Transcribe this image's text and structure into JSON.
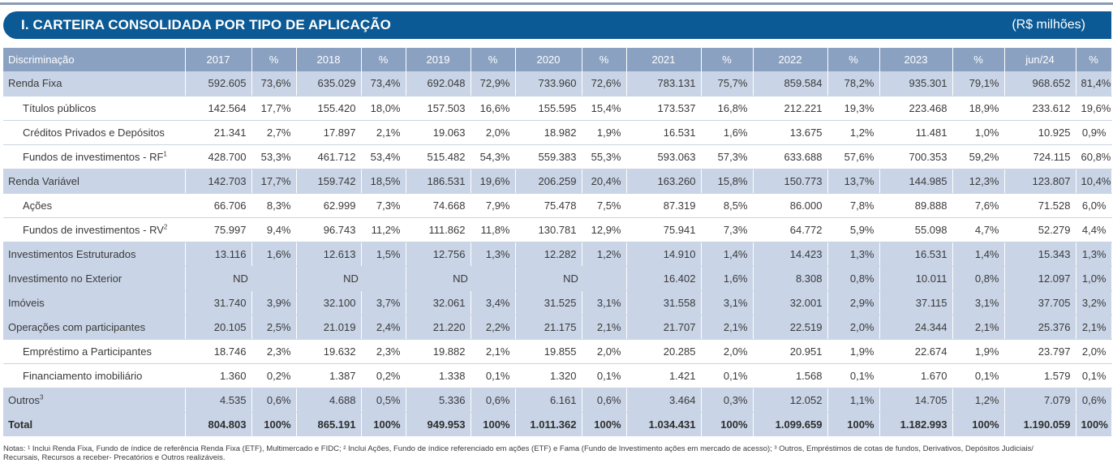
{
  "header": {
    "title": "I. CARTEIRA CONSOLIDADA POR TIPO DE APLICAÇÃO",
    "unit": "(R$ milhões)"
  },
  "table": {
    "columns": [
      "Discriminação",
      "2017",
      "%",
      "2018",
      "%",
      "2019",
      "%",
      "2020",
      "%",
      "2021",
      "%",
      "2022",
      "%",
      "2023",
      "%",
      "jun/24",
      "%"
    ],
    "rows": [
      {
        "label": "Renda Fixa",
        "sup": "",
        "level": "top",
        "cells": [
          "592.605",
          "73,6%",
          "635.029",
          "73,4%",
          "692.048",
          "72,9%",
          "733.960",
          "72,6%",
          "783.131",
          "75,7%",
          "859.584",
          "78,2%",
          "935.301",
          "79,1%",
          "968.652",
          "81,4%"
        ]
      },
      {
        "label": "Títulos públicos",
        "sup": "",
        "level": "sub",
        "cells": [
          "142.564",
          "17,7%",
          "155.420",
          "18,0%",
          "157.503",
          "16,6%",
          "155.595",
          "15,4%",
          "173.537",
          "16,8%",
          "212.221",
          "19,3%",
          "223.468",
          "18,9%",
          "233.612",
          "19,6%"
        ]
      },
      {
        "label": "Créditos Privados e Depósitos",
        "sup": "",
        "level": "sub",
        "cells": [
          "21.341",
          "2,7%",
          "17.897",
          "2,1%",
          "19.063",
          "2,0%",
          "18.982",
          "1,9%",
          "16.531",
          "1,6%",
          "13.675",
          "1,2%",
          "11.481",
          "1,0%",
          "10.925",
          "0,9%"
        ]
      },
      {
        "label": "Fundos de investimentos - RF",
        "sup": "1",
        "level": "sub",
        "cells": [
          "428.700",
          "53,3%",
          "461.712",
          "53,4%",
          "515.482",
          "54,3%",
          "559.383",
          "55,3%",
          "593.063",
          "57,3%",
          "633.688",
          "57,6%",
          "700.353",
          "59,2%",
          "724.115",
          "60,8%"
        ]
      },
      {
        "label": "Renda Variável",
        "sup": "",
        "level": "top",
        "cells": [
          "142.703",
          "17,7%",
          "159.742",
          "18,5%",
          "186.531",
          "19,6%",
          "206.259",
          "20,4%",
          "163.260",
          "15,8%",
          "150.773",
          "13,7%",
          "144.985",
          "12,3%",
          "123.807",
          "10,4%"
        ]
      },
      {
        "label": "Ações",
        "sup": "",
        "level": "sub",
        "cells": [
          "66.706",
          "8,3%",
          "62.999",
          "7,3%",
          "74.668",
          "7,9%",
          "75.478",
          "7,5%",
          "87.319",
          "8,5%",
          "86.000",
          "7,8%",
          "89.888",
          "7,6%",
          "71.528",
          "6,0%"
        ]
      },
      {
        "label": "Fundos de investimentos - RV",
        "sup": "2",
        "level": "sub",
        "cells": [
          "75.997",
          "9,4%",
          "96.743",
          "11,2%",
          "111.862",
          "11,8%",
          "130.781",
          "12,9%",
          "75.941",
          "7,3%",
          "64.772",
          "5,9%",
          "55.098",
          "4,7%",
          "52.279",
          "4,4%"
        ]
      },
      {
        "label": "Investimentos Estruturados",
        "sup": "",
        "level": "top",
        "cells": [
          "13.116",
          "1,6%",
          "12.613",
          "1,5%",
          "12.756",
          "1,3%",
          "12.282",
          "1,2%",
          "14.910",
          "1,4%",
          "14.423",
          "1,3%",
          "16.531",
          "1,4%",
          "15.343",
          "1,3%"
        ]
      },
      {
        "label": "Investimento no Exterior",
        "sup": "",
        "level": "top",
        "nd": [
          "ND",
          "ND",
          "ND",
          "ND"
        ],
        "cells": [
          "16.402",
          "1,6%",
          "8.308",
          "0,8%",
          "10.011",
          "0,8%",
          "12.097",
          "1,0%"
        ]
      },
      {
        "label": "Imóveis",
        "sup": "",
        "level": "top",
        "cells": [
          "31.740",
          "3,9%",
          "32.100",
          "3,7%",
          "32.061",
          "3,4%",
          "31.525",
          "3,1%",
          "31.558",
          "3,1%",
          "32.001",
          "2,9%",
          "37.115",
          "3,1%",
          "37.705",
          "3,2%"
        ]
      },
      {
        "label": "Operações com participantes",
        "sup": "",
        "level": "top",
        "cells": [
          "20.105",
          "2,5%",
          "21.019",
          "2,4%",
          "21.220",
          "2,2%",
          "21.175",
          "2,1%",
          "21.707",
          "2,1%",
          "22.519",
          "2,0%",
          "24.344",
          "2,1%",
          "25.376",
          "2,1%"
        ]
      },
      {
        "label": "Empréstimo a Participantes",
        "sup": "",
        "level": "sub",
        "cells": [
          "18.746",
          "2,3%",
          "19.632",
          "2,3%",
          "19.882",
          "2,1%",
          "19.855",
          "2,0%",
          "20.285",
          "2,0%",
          "20.951",
          "1,9%",
          "22.674",
          "1,9%",
          "23.797",
          "2,0%"
        ]
      },
      {
        "label": "Financiamento imobiliário",
        "sup": "",
        "level": "sub",
        "cells": [
          "1.360",
          "0,2%",
          "1.387",
          "0,2%",
          "1.338",
          "0,1%",
          "1.320",
          "0,1%",
          "1.421",
          "0,1%",
          "1.568",
          "0,1%",
          "1.670",
          "0,1%",
          "1.579",
          "0,1%"
        ]
      },
      {
        "label": "Outros",
        "sup": "3",
        "level": "top",
        "cells": [
          "4.535",
          "0,6%",
          "4.688",
          "0,5%",
          "5.336",
          "0,6%",
          "6.161",
          "0,6%",
          "3.464",
          "0,3%",
          "12.052",
          "1,1%",
          "14.705",
          "1,2%",
          "7.079",
          "0,6%"
        ]
      },
      {
        "label": "Total",
        "sup": "",
        "level": "total",
        "cells": [
          "804.803",
          "100%",
          "865.191",
          "100%",
          "949.953",
          "100%",
          "1.011.362",
          "100%",
          "1.034.431",
          "100%",
          "1.099.659",
          "100%",
          "1.182.993",
          "100%",
          "1.190.059",
          "100%"
        ]
      }
    ]
  },
  "notes": {
    "line1": "Notas: ¹ Inclui Renda Fixa, Fundo de índice de referência Renda Fixa (ETF), Multimercado e FIDC; ² Inclui Ações, Fundo de índice referenciado em ações (ETF) e Fama (Fundo de Investimento ações em mercado de acesso); ³ Outros, Empréstimos de cotas de fundos, Derivativos, Depósitos Judiciais/",
    "line2": "Recursais, Recursos a receber- Precatórios e Outros realizáveis."
  }
}
